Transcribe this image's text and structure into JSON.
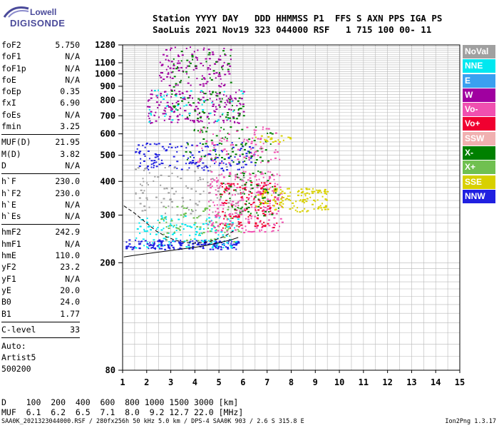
{
  "logo": {
    "line1": "Lowell",
    "line2": "DIGISONDE"
  },
  "header": {
    "row1": "Station YYYY DAY   DDD HHMMSS P1  FFS S AXN PPS IGA PS",
    "row2": "SaoLuis 2021 Nov19 323 044000 RSF   1 715 100 00- 11"
  },
  "params": [
    {
      "k": "foF2",
      "v": "5.750"
    },
    {
      "k": "foF1",
      "v": "N/A"
    },
    {
      "k": "foF1p",
      "v": "N/A"
    },
    {
      "k": "foE",
      "v": "N/A"
    },
    {
      "k": "foEp",
      "v": "0.35"
    },
    {
      "k": "fxI",
      "v": "6.90"
    },
    {
      "k": "foEs",
      "v": "N/A"
    },
    {
      "k": "fmin",
      "v": "3.25"
    },
    {
      "sep": true
    },
    {
      "k": "MUF(D)",
      "v": "21.95"
    },
    {
      "k": "M(D)",
      "v": "3.82"
    },
    {
      "k": "D",
      "v": "N/A"
    },
    {
      "sep": true
    },
    {
      "k": "h`F",
      "v": "230.0"
    },
    {
      "k": "h`F2",
      "v": "230.0"
    },
    {
      "k": "h`E",
      "v": "N/A"
    },
    {
      "k": "h`Es",
      "v": "N/A"
    },
    {
      "sep": true
    },
    {
      "k": "hmF2",
      "v": "242.9"
    },
    {
      "k": "hmF1",
      "v": "N/A"
    },
    {
      "k": "hmE",
      "v": "110.0"
    },
    {
      "k": "yF2",
      "v": "23.2"
    },
    {
      "k": "yF1",
      "v": "N/A"
    },
    {
      "k": "yE",
      "v": "20.0"
    },
    {
      "k": "B0",
      "v": "24.0"
    },
    {
      "k": "B1",
      "v": "1.77"
    },
    {
      "sep": true
    },
    {
      "k": "C-level",
      "v": "33"
    },
    {
      "sep": true
    }
  ],
  "auto": {
    "label": "Auto:",
    "artist": "Artist5",
    "code": "500200"
  },
  "legend": [
    {
      "label": "NoVal",
      "color": "#a0a0a0"
    },
    {
      "label": "NNE",
      "color": "#00e8f0"
    },
    {
      "label": "E",
      "color": "#3aa0f0"
    },
    {
      "label": "W",
      "color": "#a000a0"
    },
    {
      "label": "Vo-",
      "color": "#f050b0"
    },
    {
      "label": "Vo+",
      "color": "#f00030"
    },
    {
      "label": "SSW",
      "color": "#f0b0b0"
    },
    {
      "label": "X-",
      "color": "#008000"
    },
    {
      "label": "X+",
      "color": "#70c050"
    },
    {
      "label": "SSE",
      "color": "#d8d000"
    },
    {
      "label": "NNW",
      "color": "#2020e0"
    }
  ],
  "dmuf": {
    "row1": "D    100  200  400  600  800 1000 1500 3000 [km]",
    "row2": "MUF  6.1  6.2  6.5  7.1  8.0  9.2 12.7 22.0 [MHz]"
  },
  "footer": "SAA0K_2021323044000.RSF / 280fx256h 50 kHz 5.0 km / DPS-4 SAA0K 903 / 2.6 S 315.8 E",
  "version": "Ion2Png 1.3.17",
  "chart_data": {
    "type": "scatter",
    "xlabel": "",
    "ylabel": "",
    "xlim": [
      1,
      15
    ],
    "ylim": [
      80,
      1280
    ],
    "x_ticks": [
      1,
      2,
      3,
      4,
      5,
      6,
      7,
      8,
      9,
      10,
      11,
      12,
      13,
      14,
      15
    ],
    "y_ticks": [
      80,
      200,
      300,
      400,
      500,
      600,
      700,
      800,
      900,
      1000,
      1100,
      1280
    ],
    "y_scale": "log",
    "grid": true,
    "legend_position": "right",
    "traces": [
      {
        "name": "h`F trace",
        "x": [
          1.05,
          1.5,
          2.0,
          2.5,
          3.0,
          3.5,
          4.0,
          4.5,
          5.0,
          5.5,
          5.8
        ],
        "y": [
          210,
          213,
          216,
          219,
          222,
          225,
          228,
          232,
          237,
          243,
          248
        ]
      },
      {
        "name": "dashed",
        "x": [
          1.05,
          1.5,
          2.0,
          2.4,
          2.8,
          3.2,
          3.6,
          4.0,
          4.4,
          4.8,
          5.2,
          5.6
        ],
        "y": [
          325,
          305,
          280,
          262,
          250,
          242,
          238,
          236,
          238,
          242,
          250,
          262
        ]
      }
    ],
    "echo_bands": [
      {
        "fmin": 1.1,
        "fmax": 5.8,
        "hmin": 225,
        "hmax": 245,
        "color": "#2020e0",
        "n": 180
      },
      {
        "fmin": 1.5,
        "fmax": 5.8,
        "hmin": 228,
        "hmax": 300,
        "color": "#00e8f0",
        "n": 140
      },
      {
        "fmin": 2.5,
        "fmax": 6.0,
        "hmin": 240,
        "hmax": 330,
        "color": "#70c050",
        "n": 90
      },
      {
        "fmin": 4.5,
        "fmax": 7.6,
        "hmin": 260,
        "hmax": 440,
        "color": "#f050b0",
        "n": 260
      },
      {
        "fmin": 5.0,
        "fmax": 7.4,
        "hmin": 270,
        "hmax": 400,
        "color": "#f00030",
        "n": 120
      },
      {
        "fmin": 6.5,
        "fmax": 9.5,
        "hmin": 310,
        "hmax": 380,
        "color": "#d8d000",
        "n": 140
      },
      {
        "fmin": 5.0,
        "fmax": 7.5,
        "hmin": 300,
        "hmax": 440,
        "color": "#008000",
        "n": 70
      },
      {
        "fmin": 1.5,
        "fmax": 6.5,
        "hmin": 440,
        "hmax": 560,
        "color": "#2020e0",
        "n": 160
      },
      {
        "fmin": 3.5,
        "fmax": 7.2,
        "hmin": 470,
        "hmax": 640,
        "color": "#008000",
        "n": 80
      },
      {
        "fmin": 4.0,
        "fmax": 7.5,
        "hmin": 470,
        "hmax": 640,
        "color": "#f050b0",
        "n": 90
      },
      {
        "fmin": 6.5,
        "fmax": 8.0,
        "hmin": 560,
        "hmax": 600,
        "color": "#d8d000",
        "n": 20
      },
      {
        "fmin": 2.0,
        "fmax": 6.0,
        "hmin": 660,
        "hmax": 880,
        "color": "#a000a0",
        "n": 170
      },
      {
        "fmin": 3.0,
        "fmax": 6.0,
        "hmin": 680,
        "hmax": 880,
        "color": "#008000",
        "n": 60
      },
      {
        "fmin": 2.0,
        "fmax": 6.0,
        "hmin": 660,
        "hmax": 880,
        "color": "#00e8f0",
        "n": 40
      },
      {
        "fmin": 2.5,
        "fmax": 5.5,
        "hmin": 900,
        "hmax": 1280,
        "color": "#a000a0",
        "n": 120
      },
      {
        "fmin": 3.0,
        "fmax": 5.5,
        "hmin": 900,
        "hmax": 1250,
        "color": "#008000",
        "n": 40
      },
      {
        "fmin": 1.5,
        "fmax": 6.0,
        "hmin": 300,
        "hmax": 460,
        "color": "#a0a0a0",
        "n": 120
      }
    ]
  }
}
